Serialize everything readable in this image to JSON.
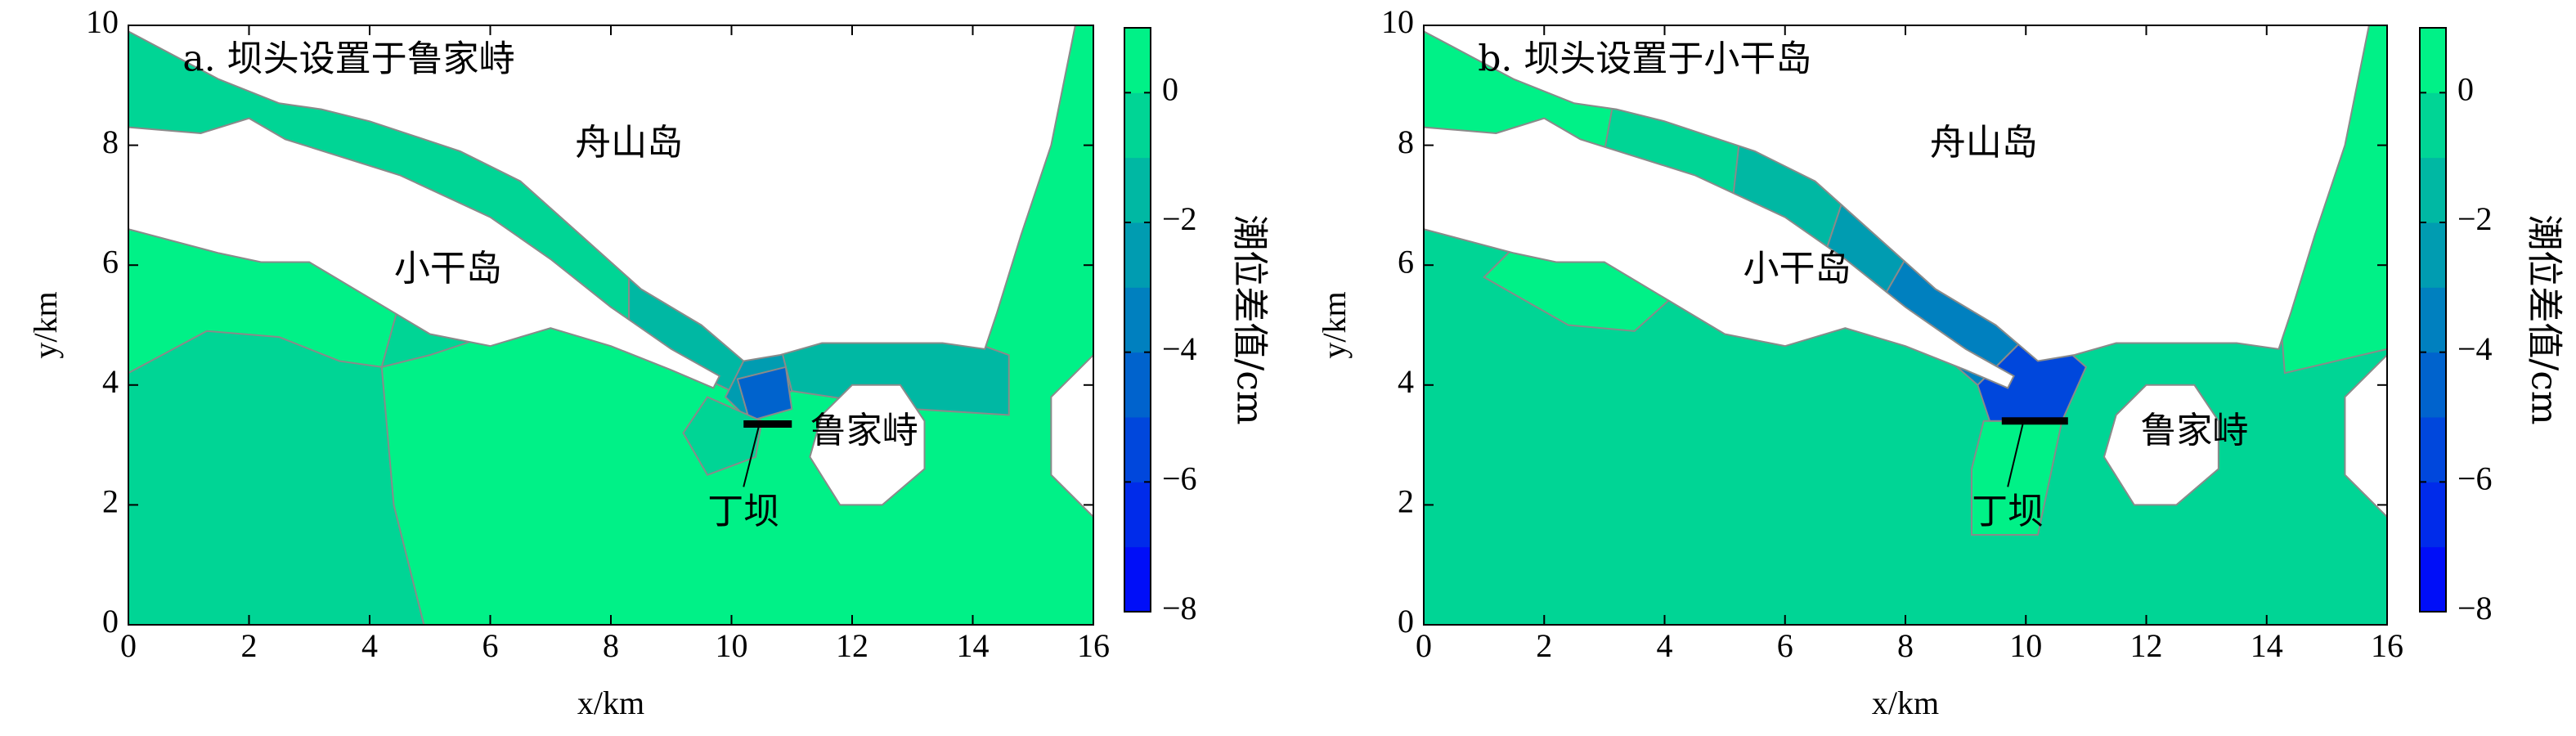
{
  "chart_data": [
    {
      "type": "contour",
      "title": "a. 坝头设置于鲁家峙",
      "annotations": [
        "舟山岛",
        "小干岛",
        "鲁家峙",
        "丁坝"
      ],
      "xlabel": "x/km",
      "ylabel": "y/km",
      "xlim": [
        0,
        16
      ],
      "ylim": [
        0,
        10
      ],
      "xticks": [
        0,
        2,
        4,
        6,
        8,
        10,
        12,
        14,
        16
      ],
      "yticks": [
        0,
        2,
        4,
        6,
        8,
        10
      ],
      "colorbar": {
        "label": "潮位差值/cm",
        "colormap": "winter",
        "clim": [
          -8,
          1
        ],
        "ticks": [
          {
            "value": -8,
            "label": "−8"
          },
          {
            "value": -6,
            "label": "−6"
          },
          {
            "value": -4,
            "label": "−4"
          },
          {
            "value": -2,
            "label": "−2"
          },
          0
        ]
      },
      "regions": [
        {
          "level": 0.5,
          "x": [
            0,
            16,
            16,
            0
          ],
          "y": [
            0,
            0,
            10,
            10
          ]
        },
        {
          "level": -0.5,
          "x": [
            0,
            4.9,
            4.4,
            4.2,
            3.5,
            2.5,
            1.3,
            0
          ],
          "y": [
            0,
            0,
            2,
            4.3,
            4.4,
            4.8,
            4.9,
            4.2
          ]
        },
        {
          "level": -0.5,
          "x": [
            4.2,
            4.5,
            5,
            5.9,
            5
          ],
          "y": [
            4.3,
            5.4,
            5.1,
            4.8,
            4.5
          ]
        },
        {
          "level": -0.5,
          "x": [
            0,
            3,
            5.5,
            7.5,
            8.3,
            8.3,
            7,
            5,
            3,
            0
          ],
          "y": [
            10,
            8.8,
            8.1,
            6.8,
            5.8,
            4.7,
            5.9,
            7.1,
            7.9,
            8.3
          ]
        },
        {
          "level": -1.5,
          "x": [
            8.3,
            9.5,
            10.3,
            10,
            8.3
          ],
          "y": [
            5.8,
            5.1,
            4.6,
            3.9,
            4.7
          ]
        },
        {
          "level": -1.5,
          "x": [
            10.8,
            13.5,
            14.6,
            14.6,
            13,
            11
          ],
          "y": [
            4.7,
            4.9,
            4.5,
            3.5,
            3.6,
            3.9
          ]
        },
        {
          "level": -2.5,
          "x": [
            10.3,
            10.8,
            11,
            10.2,
            9.9
          ],
          "y": [
            4.6,
            4.7,
            3.9,
            3.5,
            3.8
          ]
        },
        {
          "level": -4.5,
          "x": [
            10.1,
            10.9,
            11,
            10.3
          ],
          "y": [
            4.1,
            4.3,
            3.6,
            3.4
          ]
        },
        {
          "level": -0.5,
          "x": [
            9.2,
            9.6,
            10.4,
            10.5,
            9.6
          ],
          "y": [
            3.2,
            2.5,
            2.8,
            3.4,
            3.8
          ]
        }
      ]
    },
    {
      "type": "contour",
      "title": "b. 坝头设置于小干岛",
      "annotations": [
        "舟山岛",
        "小干岛",
        "鲁家峙",
        "丁坝"
      ],
      "xlabel": "x/km",
      "ylabel": "y/km",
      "xlim": [
        0,
        16
      ],
      "ylim": [
        0,
        10
      ],
      "xticks": [
        0,
        2,
        4,
        6,
        8,
        10,
        12,
        14,
        16
      ],
      "yticks": [
        0,
        2,
        4,
        6,
        8,
        10
      ],
      "colorbar": {
        "label": "潮位差值/cm",
        "colormap": "winter",
        "clim": [
          -8,
          1
        ],
        "ticks": [
          {
            "value": -8,
            "label": "−8"
          },
          {
            "value": -6,
            "label": "−6"
          },
          {
            "value": -4,
            "label": "−4"
          },
          {
            "value": -2,
            "label": "−2"
          },
          0
        ]
      },
      "regions": [
        {
          "level": -0.5,
          "x": [
            0,
            16,
            16,
            0
          ],
          "y": [
            0,
            0,
            10,
            10
          ]
        },
        {
          "level": 0.5,
          "x": [
            1,
            2.4,
            3.5,
            4.5,
            3.3,
            2.5
          ],
          "y": [
            5.8,
            5.0,
            4.9,
            5.8,
            7.3,
            7.3
          ]
        },
        {
          "level": 0.5,
          "x": [
            9.1,
            10.2,
            10.6,
            9.3,
            9.1
          ],
          "y": [
            1.5,
            1.5,
            3.4,
            3.4,
            2.6
          ]
        },
        {
          "level": 0.5,
          "x": [
            14.3,
            14.2,
            15,
            15.7,
            16,
            16
          ],
          "y": [
            4.2,
            5.5,
            7.5,
            10,
            10,
            4.6
          ]
        },
        {
          "level": 0.5,
          "x": [
            0,
            3.2,
            3,
            0
          ],
          "y": [
            10,
            9,
            7.9,
            8.3
          ]
        },
        {
          "level": -1.5,
          "x": [
            5.3,
            7.2,
            6.6,
            5.1
          ],
          "y": [
            8.6,
            7.8,
            6.0,
            6.8
          ]
        },
        {
          "level": -2.5,
          "x": [
            7.2,
            8.4,
            7.6,
            6.6
          ],
          "y": [
            7.8,
            6.8,
            5.4,
            6.0
          ]
        },
        {
          "level": -3.5,
          "x": [
            8.4,
            10.2,
            9.2,
            7.6
          ],
          "y": [
            6.8,
            5.0,
            4.0,
            5.4
          ]
        },
        {
          "level": -5.5,
          "x": [
            10.2,
            11,
            10.6,
            9.4,
            9.2
          ],
          "y": [
            5.0,
            4.3,
            3.4,
            3.4,
            4.0
          ]
        }
      ]
    }
  ]
}
